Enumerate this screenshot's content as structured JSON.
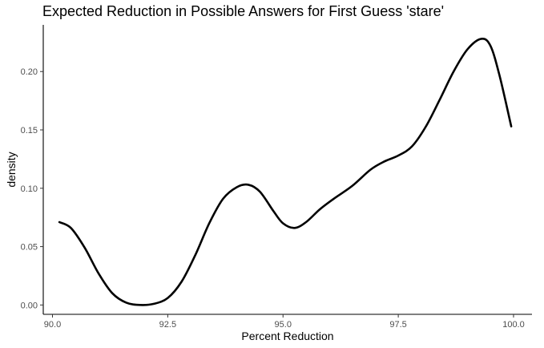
{
  "chart_data": {
    "type": "line",
    "title": "Expected Reduction in Possible Answers for First Guess 'stare'",
    "xlabel": "Percent Reduction",
    "ylabel": "density",
    "xlim": [
      89.8,
      100.4
    ],
    "ylim": [
      -0.008,
      0.24
    ],
    "x_ticks": [
      {
        "value": 90.0,
        "label": "90.0"
      },
      {
        "value": 92.5,
        "label": "92.5"
      },
      {
        "value": 95.0,
        "label": "95.0"
      },
      {
        "value": 97.5,
        "label": "97.5"
      },
      {
        "value": 100.0,
        "label": "100.0"
      }
    ],
    "y_ticks": [
      {
        "value": 0.0,
        "label": "0.00"
      },
      {
        "value": 0.05,
        "label": "0.05"
      },
      {
        "value": 0.1,
        "label": "0.10"
      },
      {
        "value": 0.15,
        "label": "0.15"
      },
      {
        "value": 0.2,
        "label": "0.20"
      }
    ],
    "grid": false,
    "legend": "none",
    "line_color": "#000000",
    "series": [
      {
        "x": [
          90.15,
          90.4,
          90.7,
          91.0,
          91.3,
          91.6,
          91.9,
          92.2,
          92.5,
          92.8,
          93.1,
          93.4,
          93.7,
          94.0,
          94.25,
          94.5,
          94.8,
          95.0,
          95.25,
          95.5,
          95.8,
          96.1,
          96.5,
          96.9,
          97.2,
          97.5,
          97.8,
          98.1,
          98.4,
          98.7,
          99.0,
          99.3,
          99.5,
          99.7,
          99.95
        ],
        "y": [
          0.071,
          0.066,
          0.049,
          0.027,
          0.01,
          0.002,
          0.0,
          0.001,
          0.006,
          0.02,
          0.043,
          0.07,
          0.091,
          0.101,
          0.103,
          0.097,
          0.08,
          0.07,
          0.066,
          0.071,
          0.082,
          0.091,
          0.102,
          0.116,
          0.123,
          0.128,
          0.136,
          0.153,
          0.176,
          0.2,
          0.219,
          0.228,
          0.222,
          0.196,
          0.153
        ]
      }
    ]
  }
}
